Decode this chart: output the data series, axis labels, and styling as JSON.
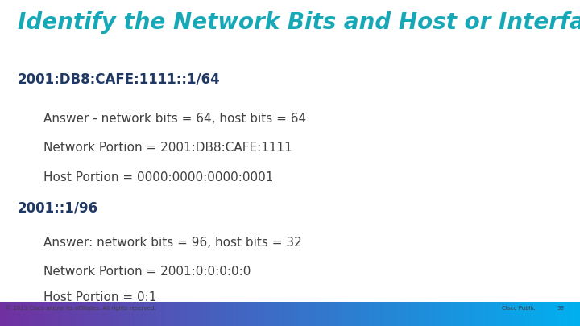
{
  "title": "Identify the Network Bits and Host or Interface Bits",
  "title_color": "#17a8b8",
  "bg_color": "#ffffff",
  "heading1": "2001:DB8:CAFE:1111::1/64",
  "heading1_color": "#1f3864",
  "indent1": [
    "Answer - network bits = 64, host bits = 64",
    "Network Portion = 2001:DB8:CAFE:1111",
    "Host Portion = 0000:0000:0000:0001"
  ],
  "heading2": "2001::1/96",
  "heading2_color": "#1f3864",
  "indent2": [
    "Answer: network bits = 96, host bits = 32",
    "Network Portion = 2001:0:0:0:0:0",
    "Host Portion = 0:1"
  ],
  "indent_color": "#404040",
  "footer_left": "© 2013 Cisco and/or its affiliates. All rights reserved.",
  "footer_right": "Cisco Public",
  "footer_page": "33",
  "footer_color": "#404040",
  "bar_color_left": "#7030a0",
  "bar_color_right": "#00b0f0",
  "title_fontsize": 20,
  "heading_fontsize": 12,
  "body_fontsize": 11
}
